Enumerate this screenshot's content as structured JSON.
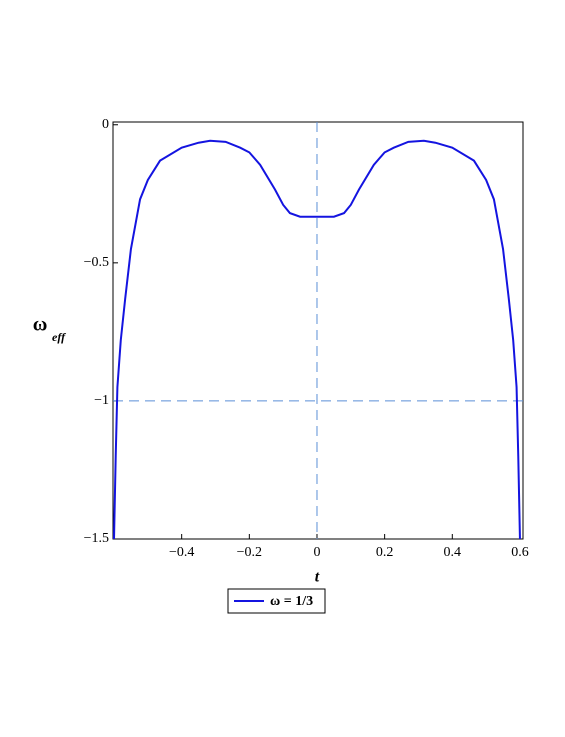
{
  "chart_data": {
    "type": "line",
    "xlabel": "t",
    "ylabel": {
      "main": "ω",
      "sub": "eff"
    },
    "x": [
      -0.6,
      -0.595,
      -0.59,
      -0.58,
      -0.567,
      -0.55,
      -0.523,
      -0.5,
      -0.464,
      -0.4,
      -0.35,
      -0.316,
      -0.27,
      -0.227,
      -0.2,
      -0.168,
      -0.124,
      -0.1,
      -0.08,
      -0.05,
      0,
      0.05,
      0.08,
      0.1,
      0.124,
      0.168,
      0.2,
      0.227,
      0.27,
      0.316,
      0.35,
      0.4,
      0.464,
      0.5,
      0.523,
      0.55,
      0.567,
      0.58,
      0.59,
      0.595,
      0.6
    ],
    "series": [
      {
        "name": "ω = 1/3",
        "color": "#1414e0",
        "values": [
          -1.5,
          -1.2,
          -0.95,
          -0.78,
          -0.63,
          -0.45,
          -0.27,
          -0.2,
          -0.13,
          -0.083,
          -0.065,
          -0.058,
          -0.062,
          -0.083,
          -0.1,
          -0.145,
          -0.235,
          -0.29,
          -0.32,
          -0.333,
          -0.333,
          -0.333,
          -0.32,
          -0.29,
          -0.235,
          -0.145,
          -0.1,
          -0.083,
          -0.062,
          -0.058,
          -0.065,
          -0.083,
          -0.13,
          -0.2,
          -0.27,
          -0.45,
          -0.63,
          -0.78,
          -0.95,
          -1.2,
          -1.5
        ]
      }
    ],
    "xlim": [
      -0.603,
      0.609
    ],
    "ylim": [
      -1.5,
      0.01
    ],
    "xticks": [
      {
        "value": -0.4,
        "label": "−0.4"
      },
      {
        "value": -0.2,
        "label": "−0.2"
      },
      0,
      0.2,
      0.4,
      0.6
    ],
    "yticks": [
      0,
      {
        "value": -0.5,
        "label": "−0.5"
      },
      {
        "value": -1,
        "label": "−1"
      },
      {
        "value": -1.5,
        "label": "−1.5"
      }
    ],
    "reference_lines": {
      "x": 0,
      "y": -1,
      "color": "#5b8fd6"
    }
  }
}
